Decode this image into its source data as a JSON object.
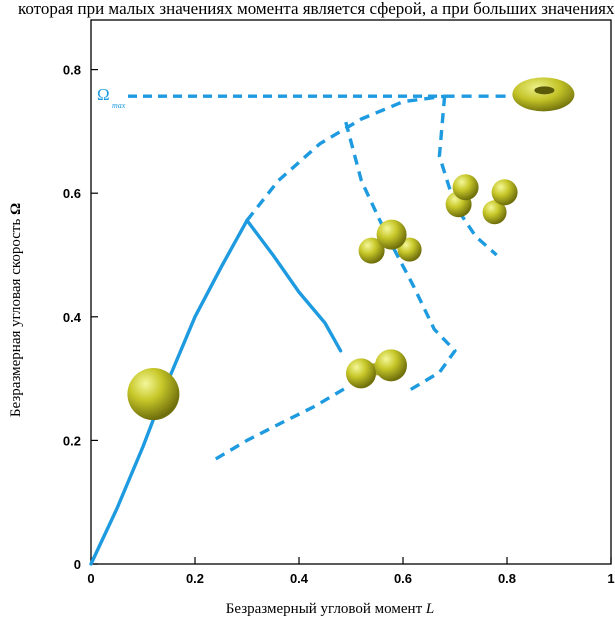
{
  "top_text": "которая при малых значениях момента является сферой, а при больших значениях – тором. Подобные кривые можно построить для",
  "chart_data": {
    "type": "line",
    "title": "",
    "xlabel_prefix": "Безразмерный угловой момент ",
    "xlabel_var": "L",
    "ylabel_prefix": "Безразмерная угловая скорость ",
    "ylabel_var": "Ω",
    "xlim": [
      0,
      1
    ],
    "ylim": [
      0,
      0.87
    ],
    "x_ticks": [
      "0",
      "0.2",
      "0.4",
      "0.6",
      "0.8",
      "1"
    ],
    "y_ticks": [
      "0",
      "0.2",
      "0.4",
      "0.6",
      "0.8"
    ],
    "grid": false,
    "line_color": "#1e9be0",
    "shape_color": "#b5b51f",
    "omega_max": {
      "value": 0.757,
      "label": "Ω",
      "subscript": "max"
    },
    "series": [
      {
        "style": "solid",
        "points": [
          [
            0,
            0
          ],
          [
            0.05,
            0.09
          ],
          [
            0.1,
            0.19
          ],
          [
            0.15,
            0.3
          ],
          [
            0.2,
            0.4
          ],
          [
            0.25,
            0.48
          ],
          [
            0.3,
            0.556
          ]
        ]
      },
      {
        "style": "dashed",
        "points": [
          [
            0.3,
            0.556
          ],
          [
            0.36,
            0.62
          ],
          [
            0.44,
            0.68
          ],
          [
            0.52,
            0.72
          ],
          [
            0.6,
            0.748
          ],
          [
            0.68,
            0.757
          ]
        ]
      },
      {
        "style": "dashed",
        "points": [
          [
            0.68,
            0.757
          ],
          [
            0.8,
            0.757
          ]
        ]
      },
      {
        "style": "solid",
        "points": [
          [
            0.3,
            0.556
          ],
          [
            0.35,
            0.5
          ],
          [
            0.4,
            0.44
          ],
          [
            0.45,
            0.39
          ],
          [
            0.48,
            0.345
          ]
        ]
      },
      {
        "style": "dashed",
        "points": [
          [
            0.24,
            0.17
          ],
          [
            0.3,
            0.2
          ],
          [
            0.37,
            0.23
          ],
          [
            0.43,
            0.255
          ],
          [
            0.49,
            0.285
          ]
        ]
      },
      {
        "style": "dashed",
        "points": [
          [
            0.49,
            0.715
          ],
          [
            0.52,
            0.62
          ],
          [
            0.57,
            0.53
          ],
          [
            0.62,
            0.45
          ],
          [
            0.66,
            0.38
          ],
          [
            0.7,
            0.345
          ],
          [
            0.67,
            0.31
          ],
          [
            0.61,
            0.28
          ]
        ]
      },
      {
        "style": "dashed",
        "points": [
          [
            0.68,
            0.757
          ],
          [
            0.67,
            0.66
          ],
          [
            0.7,
            0.58
          ],
          [
            0.74,
            0.53
          ],
          [
            0.78,
            0.5
          ]
        ]
      }
    ],
    "shapes": [
      {
        "kind": "sphere",
        "x": 0.12,
        "y": 0.275
      },
      {
        "kind": "two-sphere",
        "x": 0.55,
        "y": 0.315
      },
      {
        "kind": "three-sphere",
        "x": 0.58,
        "y": 0.52
      },
      {
        "kind": "four-sphere",
        "x": 0.78,
        "y": 0.595
      },
      {
        "kind": "torus",
        "x": 0.87,
        "y": 0.76
      }
    ]
  }
}
